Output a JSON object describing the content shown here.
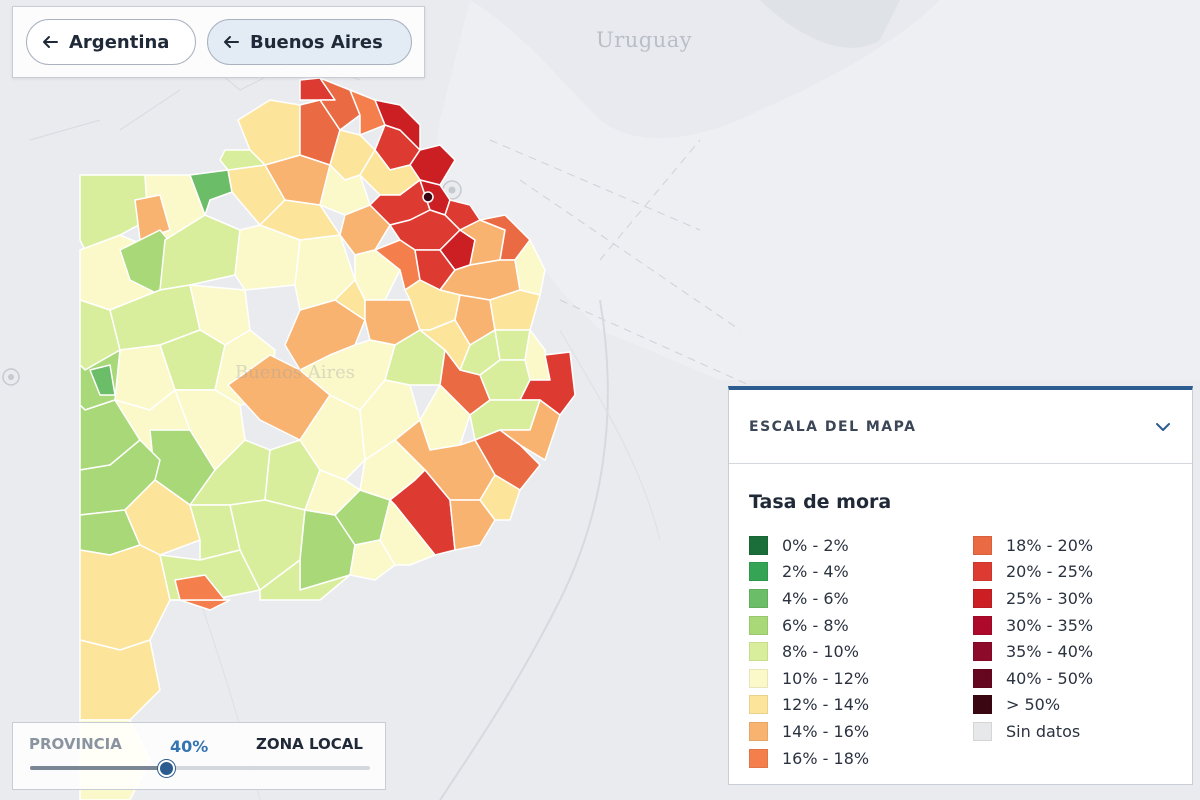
{
  "navigation": {
    "back_country_label": "Argentina",
    "back_province_label": "Buenos Aires"
  },
  "map": {
    "region_label": "Buenos Aires",
    "country_labels": [
      "Uruguay"
    ],
    "background_color": "#e9ebee",
    "region_border_color": "#ffffff"
  },
  "legend": {
    "header_title": "ESCALA DEL MAPA",
    "title": "Tasa de mora",
    "items": [
      {
        "label": "0% - 2%",
        "color": "#1b6e3a"
      },
      {
        "label": "2% - 4%",
        "color": "#35a455"
      },
      {
        "label": "4% - 6%",
        "color": "#6bbd67"
      },
      {
        "label": "6% - 8%",
        "color": "#a8d877"
      },
      {
        "label": "8% - 10%",
        "color": "#d9ee9c"
      },
      {
        "label": "10% - 12%",
        "color": "#fbf9c9"
      },
      {
        "label": "12% - 14%",
        "color": "#fde49b"
      },
      {
        "label": "14% - 16%",
        "color": "#f8b371"
      },
      {
        "label": "16% - 18%",
        "color": "#f47f4d"
      },
      {
        "label": "18% - 20%",
        "color": "#ea6a43"
      },
      {
        "label": "20% - 25%",
        "color": "#dd3b32"
      },
      {
        "label": "25% - 30%",
        "color": "#cc1f24"
      },
      {
        "label": "30% - 35%",
        "color": "#ad0a2b"
      },
      {
        "label": "35% - 40%",
        "color": "#8d0a2a"
      },
      {
        "label": "40% - 50%",
        "color": "#66071f"
      },
      {
        "label": "> 50%",
        "color": "#3a0612"
      },
      {
        "label": "Sin datos",
        "color": "#e6e8ea"
      }
    ]
  },
  "slider": {
    "left_label": "PROVINCIA",
    "value_label": "40%",
    "right_label": "ZONA LOCAL",
    "value_fraction": 0.4
  }
}
